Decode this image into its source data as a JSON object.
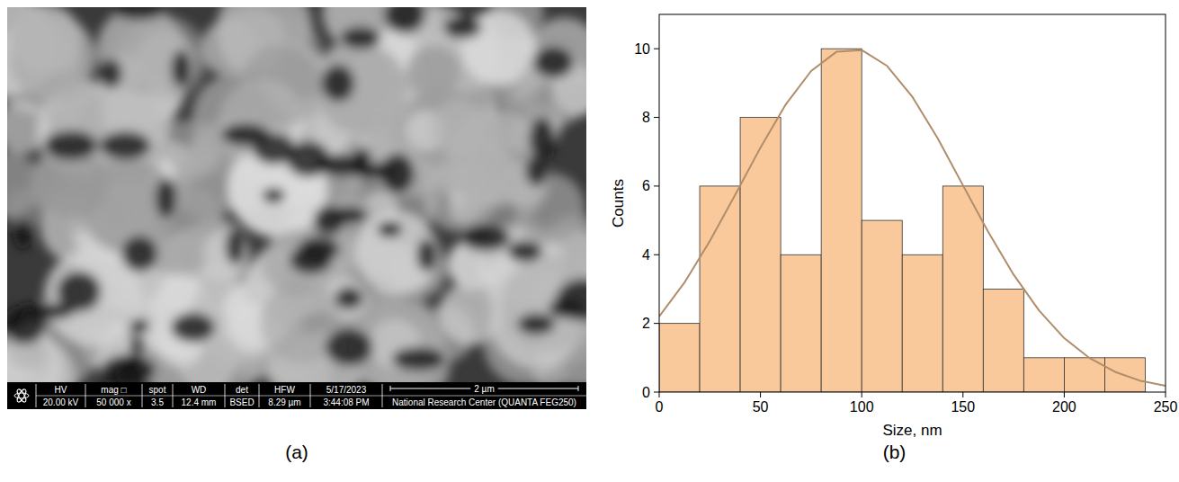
{
  "micrograph": {
    "caption": "(a)",
    "info_bar": {
      "fields": [
        {
          "label": "HV",
          "value": "20.00 kV"
        },
        {
          "label": "mag □",
          "value": "50 000 x"
        },
        {
          "label": "spot",
          "value": "3.5"
        },
        {
          "label": "WD",
          "value": "12.4 mm"
        },
        {
          "label": "det",
          "value": "BSED"
        },
        {
          "label": "HFW",
          "value": "8.29 µm"
        }
      ],
      "date": "5/17/2023",
      "time": "3:44:08 PM",
      "scale_bar": "2 µm",
      "institution": "National Research Center (QUANTA FEG250)"
    }
  },
  "chart_data": {
    "type": "histogram",
    "caption": "(b)",
    "x_label": "Size, nm",
    "y_label": "Counts",
    "bins": [
      0,
      20,
      40,
      60,
      80,
      100,
      120,
      140,
      160,
      180,
      200,
      220,
      240
    ],
    "values": [
      2,
      6,
      8,
      4,
      10,
      5,
      4,
      6,
      3,
      1,
      1,
      1
    ],
    "color": "#f9c89b",
    "fit": {
      "type": "line",
      "color": "#b08d6a",
      "x": [
        0,
        12.5,
        25,
        37.5,
        50,
        62.5,
        75,
        87.5,
        100,
        112.5,
        125,
        137.5,
        150,
        162.5,
        175,
        187.5,
        200,
        212.5,
        225,
        237.5,
        250
      ],
      "values": [
        2.2,
        3.19,
        4.4,
        5.74,
        7.12,
        8.38,
        9.35,
        9.91,
        9.96,
        9.5,
        8.6,
        7.39,
        6.02,
        4.66,
        3.42,
        2.38,
        1.57,
        0.99,
        0.59,
        0.33,
        0.18
      ]
    },
    "xlim": [
      0,
      250
    ],
    "xticks": [
      0,
      50,
      100,
      150,
      200,
      250
    ],
    "ylim": [
      0,
      11
    ],
    "yticks": [
      0,
      2,
      4,
      6,
      8,
      10
    ],
    "grid": false
  }
}
